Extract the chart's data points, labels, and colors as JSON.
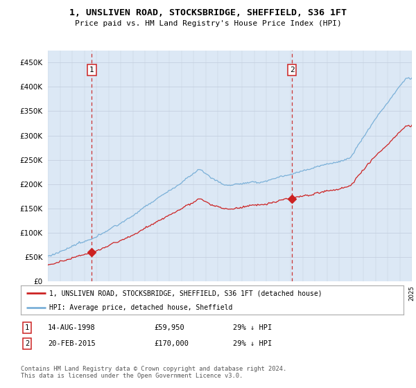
{
  "title": "1, UNSLIVEN ROAD, STOCKSBRIDGE, SHEFFIELD, S36 1FT",
  "subtitle": "Price paid vs. HM Land Registry's House Price Index (HPI)",
  "plot_bg_color": "#dce8f5",
  "sale1_date": 1998.62,
  "sale1_price": 59950,
  "sale1_label": "1",
  "sale2_date": 2015.12,
  "sale2_price": 170000,
  "sale2_label": "2",
  "legend_line1": "1, UNSLIVEN ROAD, STOCKSBRIDGE, SHEFFIELD, S36 1FT (detached house)",
  "legend_line2": "HPI: Average price, detached house, Sheffield",
  "table_row1": [
    "1",
    "14-AUG-1998",
    "£59,950",
    "29% ↓ HPI"
  ],
  "table_row2": [
    "2",
    "20-FEB-2015",
    "£170,000",
    "29% ↓ HPI"
  ],
  "footer": "Contains HM Land Registry data © Crown copyright and database right 2024.\nThis data is licensed under the Open Government Licence v3.0.",
  "ylim": [
    0,
    475000
  ],
  "yticks": [
    0,
    50000,
    100000,
    150000,
    200000,
    250000,
    300000,
    350000,
    400000,
    450000
  ],
  "hpi_color": "#7ab0d8",
  "price_color": "#cc2222",
  "dashed_color": "#cc3333",
  "grid_color": "#c5d0e0",
  "box_color": "#cc2222",
  "xstart": 1995,
  "xend": 2025
}
